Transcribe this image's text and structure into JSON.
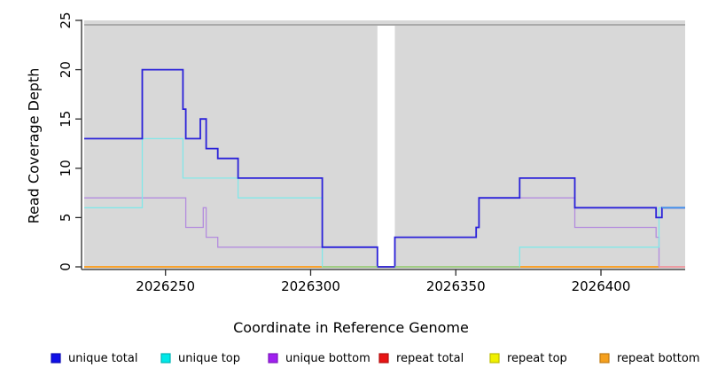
{
  "chart_data": {
    "type": "line",
    "subtype": "step-after-coverage-plot",
    "title": "",
    "xlabel": "Coordinate in Reference Genome",
    "ylabel": "Read Coverage Depth",
    "xlim": [
      2026222,
      2026429
    ],
    "ylim": [
      0,
      25
    ],
    "x_ticks": [
      2026250,
      2026300,
      2026350,
      2026400
    ],
    "y_ticks": [
      0,
      5,
      10,
      15,
      20,
      25
    ],
    "grid": false,
    "plot_bg_color": "#d8d8d8",
    "gap_region": {
      "x1": 2026323,
      "x2": 2026329,
      "color": "#ffffff"
    },
    "series": [
      {
        "name": "repeat total",
        "color": "#de1810",
        "width": 1.4,
        "points": [
          [
            2026222,
            0
          ]
        ]
      },
      {
        "name": "repeat top",
        "color": "#f0f000",
        "width": 1.4,
        "points": [
          [
            2026222,
            0
          ]
        ]
      },
      {
        "name": "repeat bottom",
        "color": "#ff9c29",
        "width": 1.6,
        "points": [
          [
            2026222,
            0
          ]
        ]
      },
      {
        "name": "unique bottom",
        "color": "#b48cde",
        "width": 1.3,
        "points": [
          [
            2026222,
            7
          ],
          [
            2026257,
            4
          ],
          [
            2026263,
            6
          ],
          [
            2026264,
            3
          ],
          [
            2026268,
            2
          ],
          [
            2026323,
            0
          ],
          [
            2026329,
            3
          ],
          [
            2026357,
            4
          ],
          [
            2026358,
            7
          ],
          [
            2026391,
            4
          ],
          [
            2026419,
            3
          ],
          [
            2026420,
            0
          ]
        ]
      },
      {
        "name": "unique top",
        "color": "#82e7e9",
        "width": 1.3,
        "points": [
          [
            2026222,
            6
          ],
          [
            2026242,
            13
          ],
          [
            2026256,
            9
          ],
          [
            2026275,
            7
          ],
          [
            2026304,
            0
          ],
          [
            2026372,
            2
          ],
          [
            2026420,
            6
          ]
        ]
      },
      {
        "name": "unique total",
        "color": "#2a21d9",
        "width": 1.8,
        "points": [
          [
            2026222,
            13
          ],
          [
            2026242,
            20
          ],
          [
            2026256,
            16
          ],
          [
            2026257,
            13
          ],
          [
            2026262,
            15
          ],
          [
            2026264,
            12
          ],
          [
            2026268,
            11
          ],
          [
            2026275,
            9
          ],
          [
            2026304,
            2
          ],
          [
            2026323,
            0
          ],
          [
            2026329,
            3
          ],
          [
            2026357,
            4
          ],
          [
            2026358,
            7
          ],
          [
            2026372,
            9
          ],
          [
            2026391,
            6
          ],
          [
            2026419,
            5
          ],
          [
            2026421,
            6
          ]
        ]
      }
    ],
    "blend_overlays": [
      {
        "note": "unique-top-over-repeat-bottom",
        "y": 0,
        "x1": 2026304,
        "x2": 2026323,
        "color": "#8fd391",
        "width": 1.5
      },
      {
        "note": "unique-top-over-repeat-bottom",
        "y": 0,
        "x1": 2026329,
        "x2": 2026372,
        "color": "#8fd391",
        "width": 1.5
      },
      {
        "note": "unique-bottom-over-repeat-bottom",
        "y": 0,
        "x1": 2026420,
        "x2": 2026429,
        "color": "#f09aba",
        "width": 1.5
      },
      {
        "note": "unique-top-over-unique-total",
        "y": 6,
        "x1": 2026421,
        "x2": 2026429,
        "color": "#4596ec",
        "width": 1.8
      }
    ],
    "legend": {
      "position": "bottom",
      "items": [
        {
          "label": "unique total",
          "fill": "#0f0fe8",
          "border": "#0a0ab4"
        },
        {
          "label": "unique top",
          "fill": "#00e8e8",
          "border": "#00b4b4"
        },
        {
          "label": "unique bottom",
          "fill": "#a020f0",
          "border": "#7d18bc"
        },
        {
          "label": "repeat total",
          "fill": "#e81414",
          "border": "#b40f0f"
        },
        {
          "label": "repeat top",
          "fill": "#f0f000",
          "border": "#bcbc00"
        },
        {
          "label": "repeat bottom",
          "fill": "#f5a01e",
          "border": "#c07c14"
        }
      ]
    },
    "axis_color": "#2b2b2b",
    "tick_label_color": "#000000"
  }
}
